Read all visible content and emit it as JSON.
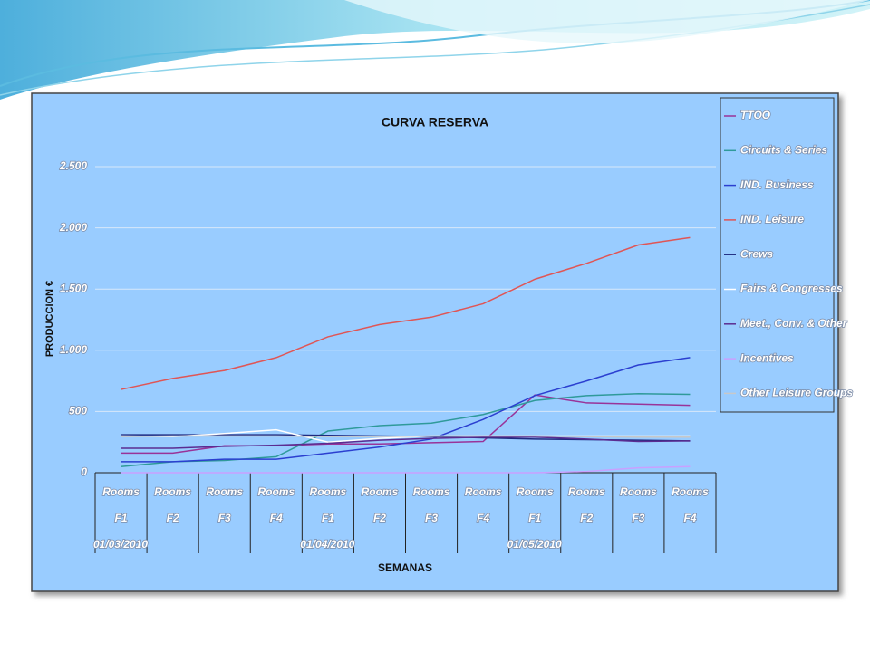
{
  "chart_data": {
    "type": "line",
    "title": "CURVA RESERVA",
    "y_label": "PRODUCCION €",
    "x_label": "SEMANAS",
    "categories": [
      "Rooms",
      "Rooms",
      "Rooms",
      "Rooms",
      "Rooms",
      "Rooms",
      "Rooms",
      "Rooms",
      "Rooms",
      "Rooms",
      "Rooms",
      "Rooms"
    ],
    "subcategories": [
      "F1",
      "F2",
      "F3",
      "F4",
      "F1",
      "F2",
      "F3",
      "F4",
      "F1",
      "F2",
      "F3",
      "F4"
    ],
    "dates": [
      "01/03/2010",
      null,
      null,
      null,
      "01/04/2010",
      null,
      null,
      null,
      "01/05/2010",
      null,
      null,
      null
    ],
    "ylim": [
      0,
      2500
    ],
    "yticks": [
      0,
      500,
      {
        "value": 1000,
        "label": "1.000"
      },
      {
        "value": 1500,
        "label": "1.500"
      },
      {
        "value": 2000,
        "label": "2.000"
      },
      {
        "value": 2500,
        "label": "2.500"
      }
    ],
    "grid": true,
    "legend": "right",
    "series": [
      {
        "name": "TTOO",
        "color": "#993399",
        "values": [
          160,
          160,
          220,
          220,
          235,
          235,
          245,
          255,
          635,
          570,
          560,
          550
        ]
      },
      {
        "name": "Circuits & Series",
        "color": "#2f9a9a",
        "values": [
          50,
          90,
          100,
          130,
          340,
          385,
          405,
          475,
          590,
          630,
          645,
          640
        ]
      },
      {
        "name": "IND. Business",
        "color": "#2b3fd0",
        "values": [
          90,
          90,
          110,
          110,
          160,
          210,
          275,
          435,
          630,
          750,
          880,
          940
        ]
      },
      {
        "name": "IND. Leisure",
        "color": "#e05555",
        "values": [
          680,
          770,
          835,
          940,
          1110,
          1210,
          1270,
          1380,
          1580,
          1710,
          1860,
          1920
        ]
      },
      {
        "name": "Crews",
        "color": "#1f2a80",
        "values": [
          310,
          310,
          310,
          310,
          305,
          300,
          295,
          285,
          275,
          270,
          265,
          260
        ]
      },
      {
        "name": "Fairs & Congresses",
        "color": "#ffffff",
        "values": [
          300,
          295,
          320,
          350,
          250,
          280,
          300,
          300,
          300,
          300,
          300,
          300
        ]
      },
      {
        "name": "Meet., Conv. & Other",
        "color": "#5b2c91",
        "values": [
          200,
          200,
          215,
          225,
          240,
          265,
          280,
          290,
          290,
          275,
          255,
          260
        ]
      },
      {
        "name": "Incentives",
        "color": "#c9a0ff",
        "values": [
          0,
          0,
          0,
          0,
          0,
          0,
          0,
          0,
          0,
          10,
          40,
          50
        ]
      },
      {
        "name": "Other Leisure Groups",
        "color": "#c8c8c8",
        "values": [
          295,
          300,
          300,
          300,
          295,
          295,
          300,
          300,
          300,
          295,
          290,
          290
        ]
      }
    ]
  }
}
